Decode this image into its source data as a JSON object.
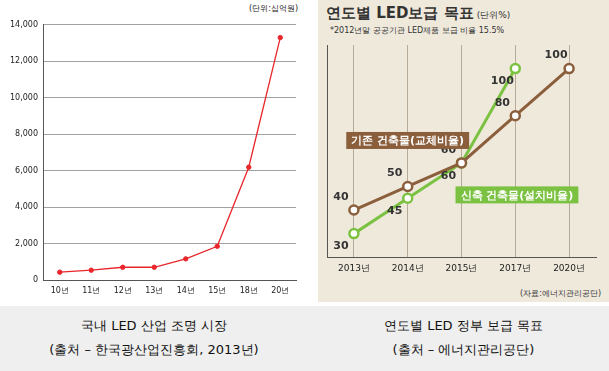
{
  "chart_data": [
    {
      "type": "line",
      "subtitle": "(단위:십억원)",
      "categories": [
        "10년",
        "11년",
        "12년",
        "13년",
        "14년",
        "15년",
        "18년",
        "20년"
      ],
      "values": [
        450,
        560,
        720,
        720,
        1180,
        1870,
        6200,
        13300
      ],
      "color": "#e8262b",
      "marker": "circle",
      "ylim": [
        0,
        14000
      ],
      "yticks": [
        0,
        {
          "value": 2000,
          "label": "2,000"
        },
        {
          "value": 4000,
          "label": "4,000"
        },
        {
          "value": 6000,
          "label": "6,000"
        },
        {
          "value": 8000,
          "label": "8,000"
        },
        {
          "value": 10000,
          "label": "10,000"
        },
        {
          "value": 12000,
          "label": "12,000"
        },
        {
          "value": 14000,
          "label": "14,000"
        }
      ],
      "grid": "y",
      "caption": [
        "국내 LED 산업 조명 시장",
        "(출처 – 한국광산업진흥회, 2013년)"
      ]
    },
    {
      "type": "line",
      "title": "연도별 LED보급 목표",
      "subtitle": "(단위%)",
      "annotations": [
        "*2012년말 공공기관 LED제품 보급 비율 15.5%",
        "(자료:에너지관리공단)"
      ],
      "categories": [
        "2013년",
        "2014년",
        "2015년",
        "2017년",
        "2020년"
      ],
      "series": [
        {
          "name": "기존 건축물(교체비율)",
          "color": "#8b5e3c",
          "marker": "open_circle",
          "values": [
            40,
            50,
            60,
            80,
            100
          ]
        },
        {
          "name": "신축 건축물(설치비율)",
          "color": "#7cc242",
          "marker": "open_circle",
          "values": [
            30,
            45,
            60,
            100,
            null
          ]
        }
      ],
      "ylim": [
        20,
        110
      ],
      "grid": "x",
      "tick_labels": "x",
      "data_labels": true,
      "caption": [
        "연도별 LED 정부 보급 목표",
        "(출처 – 에너지관리공단)"
      ]
    }
  ]
}
